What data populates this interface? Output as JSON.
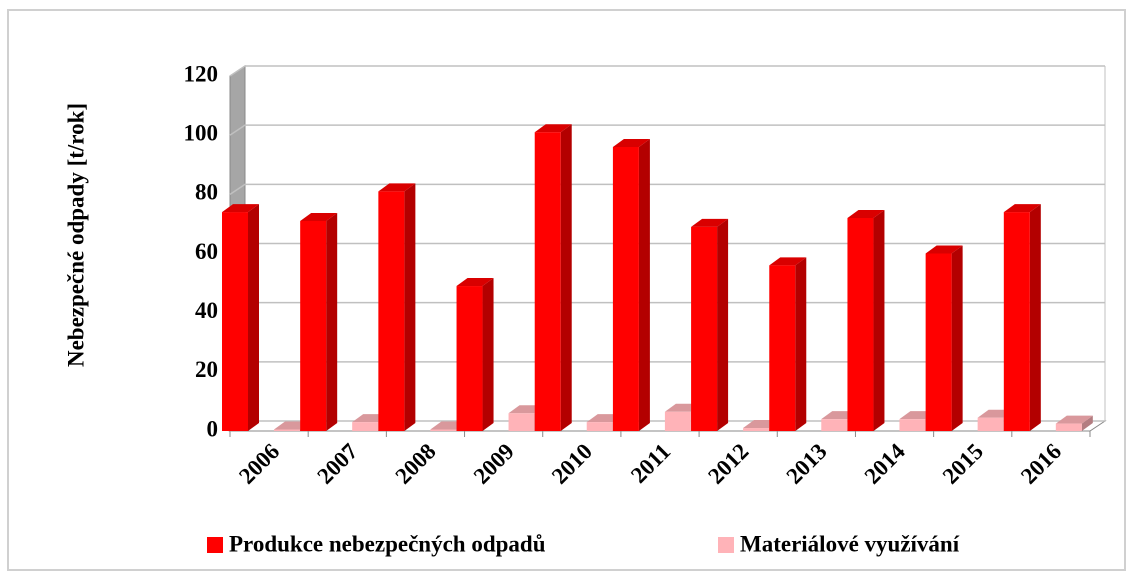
{
  "chart_data": {
    "type": "bar3d",
    "y_label": "Nebezpečné odpady [t/rok]",
    "categories": [
      "2006",
      "2007",
      "2008",
      "2009",
      "2010",
      "2011",
      "2012",
      "2013",
      "2014",
      "2015",
      "2016"
    ],
    "series": [
      {
        "name": "Produkce nebezpečných odpadů",
        "color": "#ff0000",
        "values": [
          74,
          71,
          81,
          49,
          101,
          96,
          69,
          56,
          72,
          60,
          74
        ]
      },
      {
        "name": "Materiálové využívání",
        "color": "#ffb3b8",
        "values": [
          0.5,
          3,
          0.5,
          6,
          3,
          6.5,
          1,
          4,
          4,
          4.5,
          2.5
        ]
      }
    ],
    "ylim": [
      0,
      120
    ],
    "yticks": [
      0,
      20,
      40,
      60,
      80,
      100,
      120
    ],
    "grid": true
  }
}
